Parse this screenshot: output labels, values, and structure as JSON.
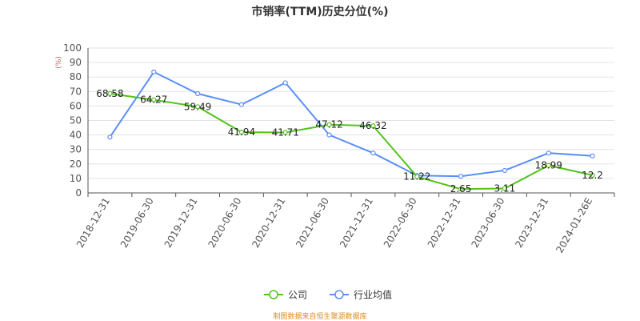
{
  "chart_data": {
    "type": "line",
    "title": "市销率(TTM)历史分位(%)",
    "ylabel": "(%)",
    "xlabel": "",
    "ylim": [
      0,
      100
    ],
    "yticks": [
      0,
      10,
      20,
      30,
      40,
      50,
      60,
      70,
      80,
      90,
      100
    ],
    "categories": [
      "2018-12-31",
      "2019-06-30",
      "2019-12-31",
      "2020-06-30",
      "2020-12-31",
      "2021-06-30",
      "2021-12-31",
      "2022-06-30",
      "2022-12-31",
      "2023-06-30",
      "2023-12-31",
      "2024-01-26E"
    ],
    "grid": true,
    "legend_position": "bottom",
    "series": [
      {
        "name": "公司",
        "color": "#52c41a",
        "values": [
          68.58,
          64.27,
          59.49,
          41.94,
          41.71,
          47.12,
          46.32,
          11.22,
          2.65,
          3.11,
          18.99,
          12.2
        ],
        "labels": [
          "68.58",
          "64.27",
          "59.49",
          "41.94",
          "41.71",
          "47.12",
          "46.32",
          "11.22",
          "2.65",
          "3.11",
          "18.99",
          "12.2"
        ]
      },
      {
        "name": "行业均值",
        "color": "#5b8ff9",
        "values": [
          38.5,
          83.5,
          68.5,
          61,
          76,
          40,
          27.5,
          12,
          11.5,
          15.5,
          27.5,
          25.5
        ]
      }
    ]
  },
  "source_note": "制图数据来自恒生聚源数据库"
}
